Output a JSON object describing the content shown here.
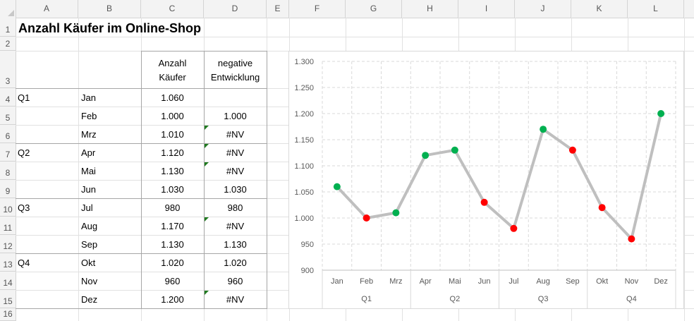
{
  "columns": [
    "A",
    "B",
    "C",
    "D",
    "E",
    "F",
    "G",
    "H",
    "I",
    "J",
    "K",
    "L"
  ],
  "rows": [
    "1",
    "2",
    "3",
    "4",
    "5",
    "6",
    "7",
    "8",
    "9",
    "10",
    "11",
    "12",
    "13",
    "14",
    "15",
    "16"
  ],
  "sheet": {
    "title": "Anzahl Käufer im Online-Shop",
    "header_c_line1": "Anzahl",
    "header_c_line2": "Käufer",
    "header_d_line1": "negative",
    "header_d_line2": "Entwicklung",
    "quarters": [
      "Q1",
      "Q2",
      "Q3",
      "Q4"
    ],
    "months": [
      "Jan",
      "Feb",
      "Mrz",
      "Apr",
      "Mai",
      "Jun",
      "Jul",
      "Aug",
      "Sep",
      "Okt",
      "Nov",
      "Dez"
    ],
    "buyers": [
      "1.060",
      "1.000",
      "1.010",
      "1.120",
      "1.130",
      "1.030",
      "980",
      "1.170",
      "1.130",
      "1.020",
      "960",
      "1.200"
    ],
    "negative": [
      "",
      "1.000",
      "#NV",
      "#NV",
      "#NV",
      "1.030",
      "980",
      "#NV",
      "1.130",
      "1.020",
      "960",
      "#NV"
    ]
  },
  "chart_data": {
    "type": "line",
    "title": "",
    "categories": [
      "Jan",
      "Feb",
      "Mrz",
      "Apr",
      "Mai",
      "Jun",
      "Jul",
      "Aug",
      "Sep",
      "Okt",
      "Nov",
      "Dez"
    ],
    "groups": [
      "Q1",
      "Q2",
      "Q3",
      "Q4"
    ],
    "values": [
      1060,
      1000,
      1010,
      1120,
      1130,
      1030,
      980,
      1170,
      1130,
      1020,
      960,
      1200
    ],
    "negative": [
      null,
      1000,
      null,
      null,
      null,
      1030,
      980,
      null,
      1130,
      1020,
      960,
      null
    ],
    "ylim": [
      900,
      1300
    ],
    "yticks": [
      "900",
      "950",
      "1.000",
      "1.050",
      "1.100",
      "1.150",
      "1.200",
      "1.250",
      "1.300"
    ],
    "grid": true,
    "colors": {
      "line": "#bfbfbf",
      "up": "#00b050",
      "down": "#ff0000",
      "grid": "#d9d9d9"
    }
  }
}
